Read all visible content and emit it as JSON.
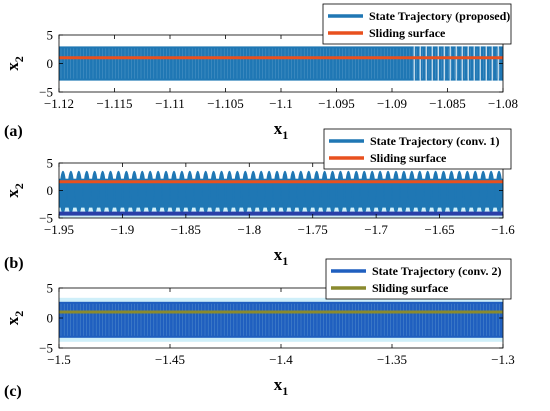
{
  "chart_data": [
    {
      "type": "line",
      "panel_label": "(a)",
      "xlabel": "x",
      "xlabel_sub": "1",
      "ylabel": "x",
      "ylabel_sub": "2",
      "xlim": [
        -1.12,
        -1.08
      ],
      "ylim": [
        -5,
        5
      ],
      "xticks": [
        -1.12,
        -1.115,
        -1.11,
        -1.105,
        -1.1,
        -1.095,
        -1.09,
        -1.085,
        -1.08
      ],
      "xtick_labels": [
        "−1.12",
        "−1.115",
        "−1.11",
        "−1.105",
        "−1.1",
        "−1.095",
        "−1.09",
        "−1.085",
        "−1.08"
      ],
      "yticks": [
        -5,
        0,
        5
      ],
      "ytick_labels": [
        "−5",
        "0",
        "5"
      ],
      "grid": false,
      "legend_position": "top-right",
      "series": [
        {
          "name": "State Trajectory (proposed)",
          "color": "#1f77b4",
          "x_range": [
            -1.12,
            -1.08
          ],
          "y_range": [
            -3,
            3
          ],
          "pattern": "dense"
        },
        {
          "name": "Sliding surface",
          "color": "#e8501e",
          "x": [
            -1.12,
            -1.08
          ],
          "y": [
            1.0,
            1.0
          ]
        }
      ]
    },
    {
      "type": "line",
      "panel_label": "(b)",
      "xlabel": "x",
      "xlabel_sub": "1",
      "ylabel": "x",
      "ylabel_sub": "2",
      "xlim": [
        -1.95,
        -1.6
      ],
      "ylim": [
        -5,
        5
      ],
      "xticks": [
        -1.95,
        -1.9,
        -1.85,
        -1.8,
        -1.75,
        -1.7,
        -1.65,
        -1.6
      ],
      "xtick_labels": [
        "−1.95",
        "−1.9",
        "−1.85",
        "−1.8",
        "−1.75",
        "−1.7",
        "−1.65",
        "−1.6"
      ],
      "yticks": [
        -5,
        0,
        5
      ],
      "ytick_labels": [
        "−5",
        "0",
        "5"
      ],
      "grid": false,
      "legend_position": "top-right",
      "series": [
        {
          "name": "State Trajectory (conv. 1)",
          "color": "#1f77b4",
          "x_range": [
            -1.95,
            -1.6
          ],
          "y_range": [
            -4.2,
            3.6
          ],
          "pattern": "oscillating",
          "cycles": 56
        },
        {
          "name": "Sliding surface",
          "color": "#e8501e",
          "x": [
            -1.95,
            -1.6
          ],
          "y": [
            1.6,
            1.6
          ]
        }
      ]
    },
    {
      "type": "line",
      "panel_label": "(c)",
      "xlabel": "x",
      "xlabel_sub": "1",
      "ylabel": "x",
      "ylabel_sub": "2",
      "xlim": [
        -1.5,
        -1.3
      ],
      "ylim": [
        -5,
        5
      ],
      "xticks": [
        -1.5,
        -1.45,
        -1.4,
        -1.35,
        -1.3
      ],
      "xtick_labels": [
        "−1.5",
        "−1.45",
        "−1.4",
        "−1.35",
        "−1.3"
      ],
      "yticks": [
        -5,
        0,
        5
      ],
      "ytick_labels": [
        "−5",
        "0",
        "5"
      ],
      "grid": false,
      "legend_position": "top-right",
      "series": [
        {
          "name": "State Trajectory (conv. 2)",
          "color": "#1f5fbf",
          "x_range": [
            -1.5,
            -1.3
          ],
          "y_range": [
            -3.3,
            2.7
          ],
          "pattern": "dense"
        },
        {
          "name": "Sliding surface",
          "color": "#8a8a2e",
          "x": [
            -1.5,
            -1.3
          ],
          "y": [
            1.0,
            1.0
          ]
        }
      ]
    }
  ]
}
